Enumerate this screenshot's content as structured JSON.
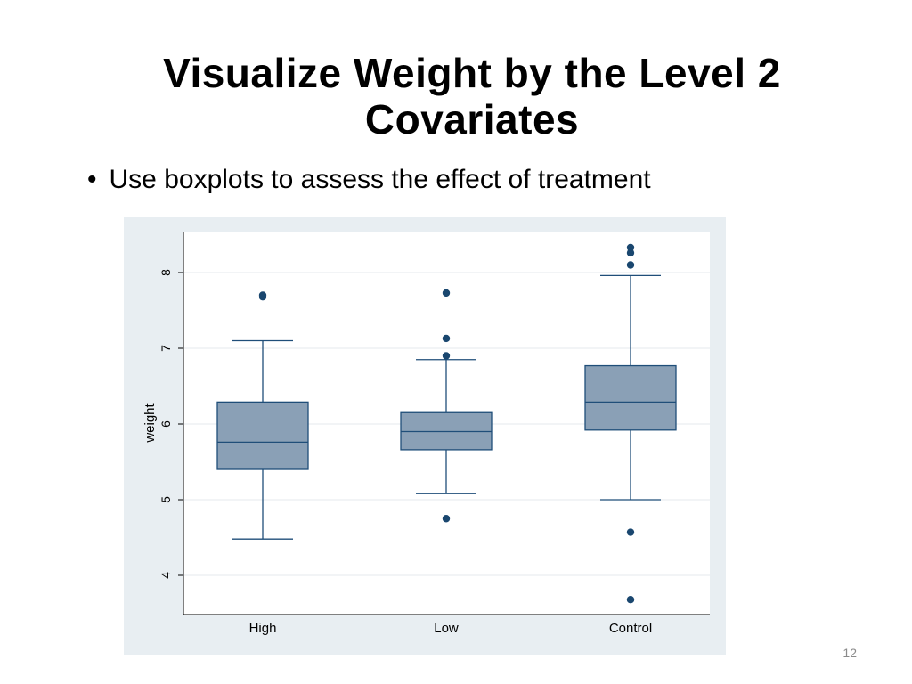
{
  "slide": {
    "title_line1": "Visualize Weight by the Level 2",
    "title_line2": "Covariates",
    "bullet_marker": "•",
    "bullet_text": "Use boxplots to assess the effect of treatment",
    "page_number": "12"
  },
  "colors": {
    "plot_background_outer": "#e8eef2",
    "plot_background_inner": "#ffffff",
    "gridline": "#e4e8ec",
    "box_fill": "#8aa0b6",
    "box_stroke": "#1f4e79",
    "outlier": "#1a476f",
    "axis": "#000000"
  },
  "chart_data": {
    "type": "boxplot",
    "title": "",
    "xlabel": "",
    "ylabel": "weight",
    "ylim": [
      3.5,
      8.5
    ],
    "yticks": [
      4,
      5,
      6,
      7,
      8
    ],
    "grid": true,
    "categories": [
      "High",
      "Low",
      "Control"
    ],
    "boxes": [
      {
        "category": "High",
        "whisker_low": 4.48,
        "q1": 5.4,
        "median": 5.76,
        "q3": 6.29,
        "whisker_high": 7.1,
        "outliers": [
          7.68,
          7.7
        ]
      },
      {
        "category": "Low",
        "whisker_low": 5.08,
        "q1": 5.66,
        "median": 5.9,
        "q3": 6.15,
        "whisker_high": 6.85,
        "outliers": [
          4.75,
          6.9,
          7.13,
          7.73
        ]
      },
      {
        "category": "Control",
        "whisker_low": 5.0,
        "q1": 5.92,
        "median": 6.29,
        "q3": 6.77,
        "whisker_high": 7.96,
        "outliers": [
          3.68,
          4.57,
          8.1,
          8.26,
          8.33
        ]
      }
    ]
  }
}
